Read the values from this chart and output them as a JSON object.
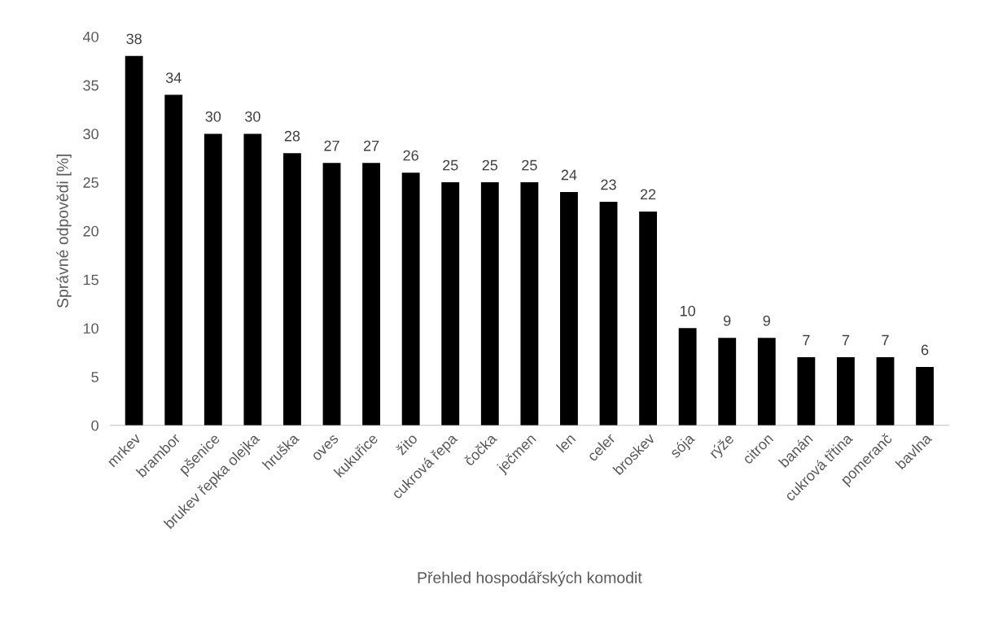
{
  "chart_data": {
    "type": "bar",
    "xlabel": "Přehled hospodářských komodit",
    "ylabel": "Správné odpovědi [%]",
    "categories": [
      "mrkev",
      "brambor",
      "pšenice",
      "brukev řepka olejka",
      "hruška",
      "oves",
      "kukuřice",
      "žito",
      "cukrová řepa",
      "čočka",
      "ječmen",
      "len",
      "celer",
      "broskev",
      "sója",
      "rýže",
      "citron",
      "banán",
      "cukrová třtina",
      "pomeranč",
      "bavlna"
    ],
    "values": [
      38,
      34,
      30,
      30,
      28,
      27,
      27,
      26,
      25,
      25,
      25,
      24,
      23,
      22,
      10,
      9,
      9,
      7,
      7,
      7,
      6
    ],
    "color": "#000000",
    "ylim": [
      0,
      40
    ],
    "yticks": [
      0,
      5,
      10,
      15,
      20,
      25,
      30,
      35,
      40
    ],
    "data_labels": true,
    "grid": false,
    "legend": false
  }
}
